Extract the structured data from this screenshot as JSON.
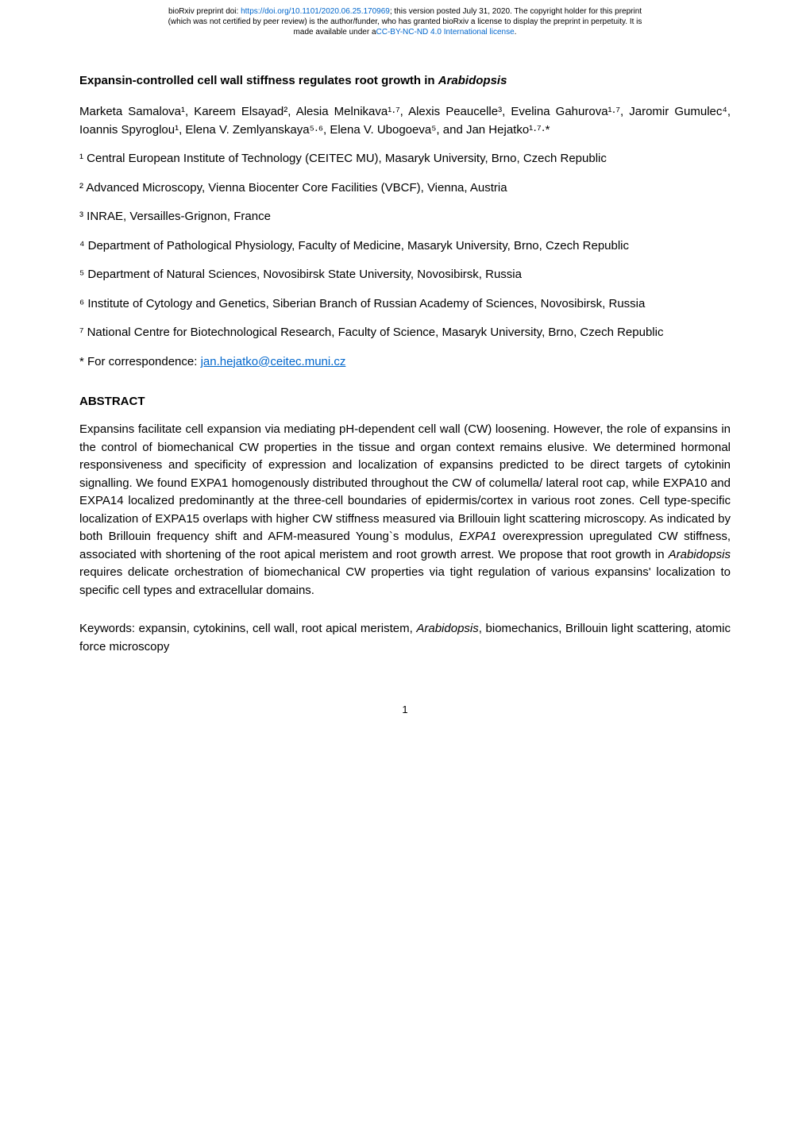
{
  "header": {
    "line1_prefix": "bioRxiv preprint doi: ",
    "doi_link": "https://doi.org/10.1101/2020.06.25.170969",
    "line1_suffix": "; this version posted July 31, 2020. The copyright holder for this preprint",
    "line2": "(which was not certified by peer review) is the author/funder, who has granted bioRxiv a license to display the preprint in perpetuity. It is",
    "line3_prefix": "made available under a",
    "license_link": "CC-BY-NC-ND 4.0 International license",
    "line3_suffix": "."
  },
  "title": {
    "main": "Expansin-controlled cell wall stiffness regulates root growth in ",
    "italic": "Arabidopsis"
  },
  "authors": "Marketa Samalova¹, Kareem Elsayad², Alesia Melnikava¹·⁷, Alexis Peaucelle³, Evelina Gahurova¹·⁷, Jaromir Gumulec⁴, Ioannis Spyroglou¹, Elena V. Zemlyanskaya⁵·⁶, Elena V. Ubogoeva⁵, and Jan Hejatko¹·⁷·*",
  "affiliations": [
    "¹ Central European Institute of Technology (CEITEC MU), Masaryk University, Brno, Czech Republic",
    "² Advanced Microscopy, Vienna Biocenter Core Facilities (VBCF), Vienna, Austria",
    "³ INRAE, Versailles-Grignon, France",
    "⁴ Department of Pathological Physiology, Faculty of Medicine, Masaryk University, Brno, Czech Republic",
    "⁵ Department of Natural Sciences, Novosibirsk State University, Novosibirsk, Russia",
    "⁶ Institute of Cytology and Genetics, Siberian Branch of Russian Academy of Sciences, Novosibirsk, Russia",
    "⁷ National Centre for Biotechnological Research, Faculty of Science, Masaryk University, Brno, Czech Republic"
  ],
  "correspondence": {
    "prefix": "* For correspondence: ",
    "email": "jan.hejatko@ceitec.muni.cz"
  },
  "abstract": {
    "heading": "ABSTRACT",
    "body_part1": "Expansins facilitate cell expansion via mediating pH-dependent cell wall (CW) loosening. However, the role of expansins in the control of biomechanical CW properties in the tissue and organ context remains elusive. We determined hormonal responsiveness and specificity of expression and localization of expansins predicted to be direct targets of cytokinin signalling. We found EXPA1 homogenously distributed throughout the CW of columella/ lateral root cap, while EXPA10 and EXPA14 localized predominantly at the three-cell boundaries of epidermis/cortex in various root zones. Cell type-specific localization of EXPA15 overlaps with higher CW stiffness measured via Brillouin light scattering microscopy. As indicated by both Brillouin frequency shift and AFM-measured Young`s modulus, ",
    "body_italic1": "EXPA1",
    "body_part2": " overexpression upregulated CW stiffness, associated with shortening of the root apical meristem and root growth arrest. We propose that root growth in ",
    "body_italic2": "Arabidopsis",
    "body_part3": " requires delicate orchestration of biomechanical CW properties via tight regulation of various expansins' localization to specific cell types and extracellular domains."
  },
  "keywords": {
    "part1": "Keywords: expansin, cytokinins, cell wall, root apical meristem, ",
    "italic": "Arabidopsis",
    "part2": ", biomechanics, Brillouin light scattering, atomic force microscopy"
  },
  "page_number": "1",
  "colors": {
    "link_color": "#0066cc",
    "text_color": "#000000",
    "background": "#ffffff"
  },
  "typography": {
    "body_fontsize": 15,
    "header_fontsize": 10,
    "sup_fontsize": 10,
    "page_number_fontsize": 13
  }
}
